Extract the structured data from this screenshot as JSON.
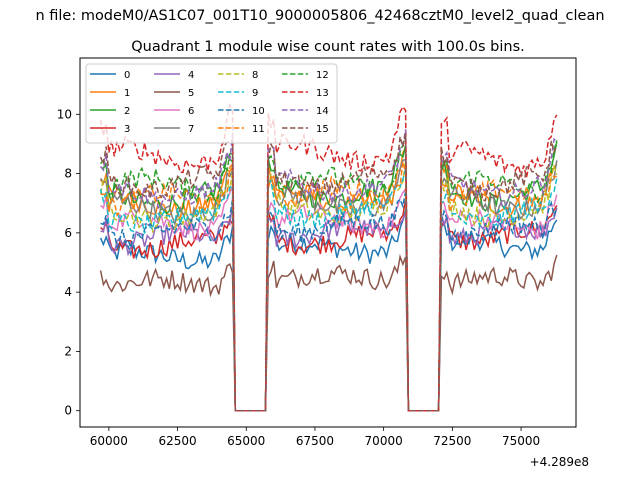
{
  "chart_data": {
    "type": "line",
    "suptitle": "n file: modeM0/AS1C07_001T10_9000005806_42468cztM0_level2_quad_clean",
    "title": "Quadrant 1 module wise count rates with 100.0s bins.",
    "xlabel": "",
    "ylabel": "",
    "x_offset_label": "+4.289e8",
    "xlim": [
      58950,
      77000
    ],
    "ylim": [
      -0.55,
      11.9
    ],
    "x_ticks": [
      60000,
      62500,
      65000,
      67500,
      70000,
      72500,
      75000
    ],
    "x_tick_labels": [
      "60000",
      "62500",
      "65000",
      "67500",
      "70000",
      "72500",
      "75000"
    ],
    "y_ticks": [
      0,
      2,
      4,
      6,
      8,
      10
    ],
    "y_tick_labels": [
      "0",
      "2",
      "4",
      "6",
      "8",
      "10"
    ],
    "bin_seconds": 100,
    "segments": [
      [
        59700,
        64500
      ],
      [
        65800,
        70800
      ],
      [
        72100,
        76300
      ]
    ],
    "gaps": [
      [
        64600,
        65700
      ],
      [
        70900,
        72000
      ]
    ],
    "legend_position": "upper-left",
    "series": [
      {
        "name": "0",
        "color": "#1f77b4",
        "dash": "solid",
        "base": [
          5.2,
          5.5,
          5.6
        ]
      },
      {
        "name": "1",
        "color": "#ff7f0e",
        "dash": "solid",
        "base": [
          7.0,
          7.2,
          7.1
        ]
      },
      {
        "name": "2",
        "color": "#2ca02c",
        "dash": "solid",
        "base": [
          7.2,
          7.4,
          7.3
        ]
      },
      {
        "name": "3",
        "color": "#d62728",
        "dash": "solid",
        "base": [
          5.6,
          5.8,
          5.9
        ]
      },
      {
        "name": "4",
        "color": "#9467bd",
        "dash": "solid",
        "base": [
          5.8,
          6.0,
          6.0
        ]
      },
      {
        "name": "5",
        "color": "#8c564b",
        "dash": "solid",
        "base": [
          4.3,
          4.5,
          4.4
        ]
      },
      {
        "name": "6",
        "color": "#e377c2",
        "dash": "solid",
        "base": [
          6.3,
          6.4,
          6.3
        ]
      },
      {
        "name": "7",
        "color": "#7f7f7f",
        "dash": "solid",
        "base": [
          6.8,
          7.0,
          7.0
        ]
      },
      {
        "name": "8",
        "color": "#bcbd22",
        "dash": "dashed",
        "base": [
          6.6,
          6.8,
          6.7
        ]
      },
      {
        "name": "9",
        "color": "#17becf",
        "dash": "dashed",
        "base": [
          6.5,
          6.7,
          6.6
        ]
      },
      {
        "name": "10",
        "color": "#1f77b4",
        "dash": "dashed",
        "base": [
          6.0,
          6.2,
          6.1
        ]
      },
      {
        "name": "11",
        "color": "#ff7f0e",
        "dash": "dashed",
        "base": [
          7.1,
          7.3,
          7.2
        ]
      },
      {
        "name": "12",
        "color": "#2ca02c",
        "dash": "dashed",
        "base": [
          7.6,
          7.7,
          7.6
        ]
      },
      {
        "name": "13",
        "color": "#d62728",
        "dash": "dashed",
        "base": [
          8.6,
          8.7,
          8.5
        ]
      },
      {
        "name": "14",
        "color": "#9467bd",
        "dash": "dashed",
        "base": [
          7.4,
          7.6,
          7.5
        ]
      },
      {
        "name": "15",
        "color": "#8c564b",
        "dash": "dashed",
        "base": [
          7.7,
          7.8,
          7.7
        ]
      }
    ]
  }
}
